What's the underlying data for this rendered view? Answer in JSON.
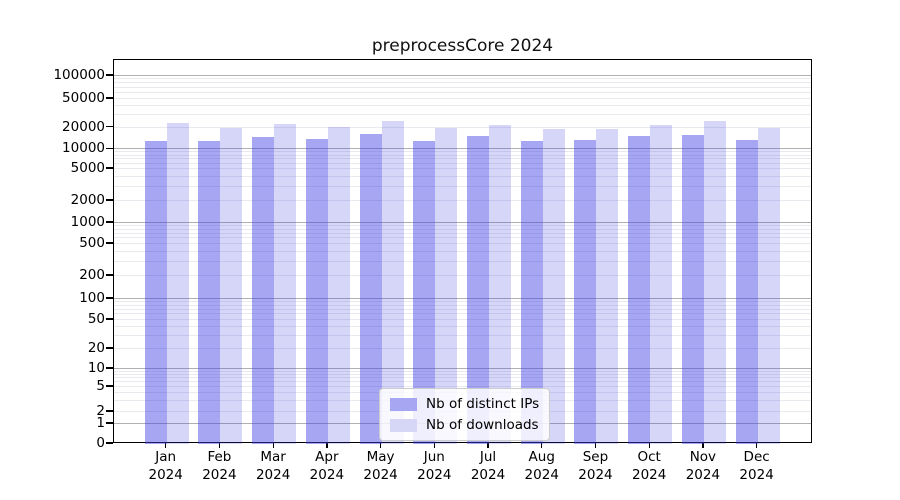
{
  "chart_data": {
    "type": "bar",
    "title": "preprocessCore 2024",
    "categories": [
      "Jan",
      "Feb",
      "Mar",
      "Apr",
      "May",
      "Jun",
      "Jul",
      "Aug",
      "Sep",
      "Oct",
      "Nov",
      "Dec"
    ],
    "x_tick_year": "2024",
    "series": [
      {
        "name": "Nb of distinct IPs",
        "color": "#a6a6f2",
        "values": [
          12900,
          13100,
          14700,
          14000,
          16500,
          12900,
          15100,
          13200,
          13600,
          15100,
          15600,
          13300
        ]
      },
      {
        "name": "Nb of downloads",
        "color": "#d6d6f6",
        "values": [
          23000,
          20000,
          22300,
          20300,
          24500,
          20000,
          21800,
          18900,
          19400,
          21800,
          24500,
          20000
        ]
      }
    ],
    "yscale": "symlog",
    "y_ticks": [
      100000,
      50000,
      20000,
      10000,
      5000,
      2000,
      1000,
      500,
      200,
      100,
      50,
      20,
      10,
      5,
      2,
      1,
      0
    ],
    "ylim": [
      0,
      150000
    ],
    "grid": true,
    "legend_position": "lower center",
    "bar_base_color": "#3d3de5",
    "bar_alphas": [
      0.46,
      0.21
    ],
    "grid_major_color": "#b0b0b0",
    "grid_minor_color": "#e9e9ef",
    "axis_color": "#000000"
  }
}
